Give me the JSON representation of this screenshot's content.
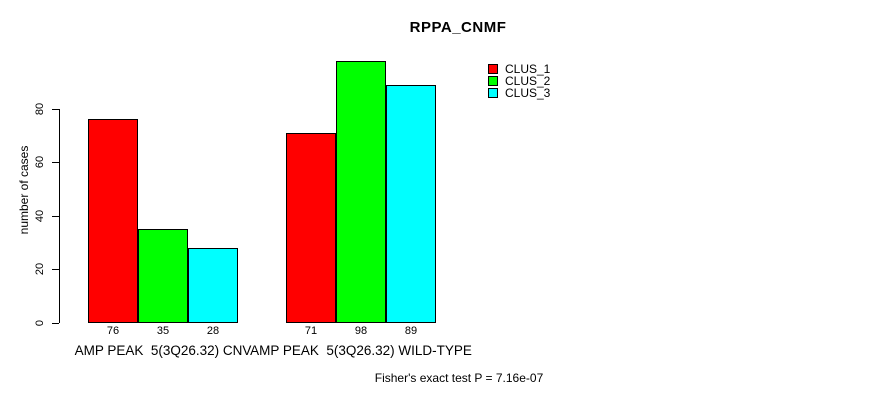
{
  "chart_data": {
    "type": "bar",
    "title": "RPPA_CNMF",
    "xlabel": "",
    "ylabel": "number of cases",
    "ylim": [
      0,
      100
    ],
    "yticks": [
      0,
      20,
      40,
      60,
      80
    ],
    "grid": false,
    "legend_position": "top-right",
    "bar_value_labels_shown": true,
    "categories": [
      "AMP PEAK  5(3Q26.32) CNV",
      "AMP PEAK  5(3Q26.32) WILD-TYPE"
    ],
    "series": [
      {
        "name": "CLUS_1",
        "color": "#ff0000",
        "values": [
          76,
          71
        ]
      },
      {
        "name": "CLUS_2",
        "color": "#00ff00",
        "values": [
          35,
          98
        ]
      },
      {
        "name": "CLUS_3",
        "color": "#00ffff",
        "values": [
          28,
          89
        ]
      }
    ]
  },
  "annotation": "Fisher's exact test P = 7.16e-07",
  "colors": {
    "background": "#ffffff",
    "axis": "#000000",
    "text": "#000000"
  }
}
